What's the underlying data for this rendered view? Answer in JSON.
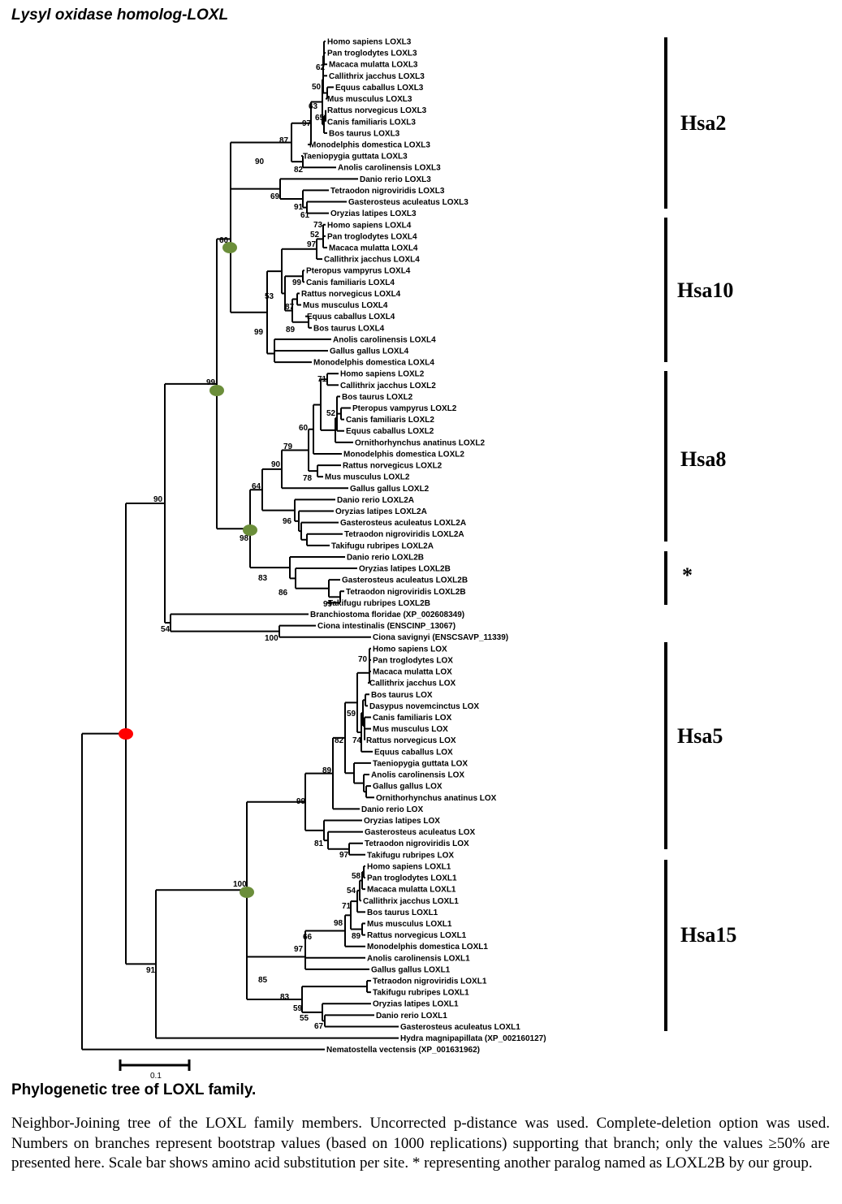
{
  "title": "Lysyl oxidase homolog-LOXL",
  "scale_bar_label": "0.1",
  "caption_title": "Phylogenetic tree of LOXL family.",
  "caption_text": "Neighbor-Joining tree of the LOXL family members. Uncorrected p-distance was used. Complete-deletion option was used. Numbers on branches represent bootstrap values (based on 1000 replications) supporting that branch; only the values ≥50% are presented here. Scale bar shows amino acid substitution per site. * representing another paralog named as LOXL2B by our group.",
  "groups": [
    {
      "label": "Hsa2"
    },
    {
      "label": "Hsa10"
    },
    {
      "label": "Hsa8"
    },
    {
      "label": "*"
    },
    {
      "label": "Hsa5"
    },
    {
      "label": "Hsa15"
    }
  ],
  "taxa": [
    "Homo sapiens LOXL3",
    "Pan troglodytes LOXL3",
    "Macaca mulatta LOXL3",
    "Callithrix jacchus LOXL3",
    "Equus caballus LOXL3",
    "Mus musculus LOXL3",
    "Rattus norvegicus LOXL3",
    "Canis familiaris LOXL3",
    "Bos taurus LOXL3",
    "Monodelphis domestica LOXL3",
    "Taeniopygia guttata LOXL3",
    "Anolis carolinensis LOXL3",
    "Danio rerio LOXL3",
    "Tetraodon nigroviridis LOXL3",
    "Gasterosteus aculeatus LOXL3",
    "Oryzias latipes LOXL3",
    "Homo sapiens LOXL4",
    "Pan troglodytes LOXL4",
    "Macaca mulatta LOXL4",
    "Callithrix jacchus LOXL4",
    "Pteropus vampyrus LOXL4",
    "Canis familiaris LOXL4",
    "Rattus norvegicus LOXL4",
    "Mus musculus LOXL4",
    "Equus caballus LOXL4",
    "Bos taurus LOXL4",
    "Anolis carolinensis LOXL4",
    "Gallus gallus LOXL4",
    "Monodelphis domestica LOXL4",
    "Homo sapiens LOXL2",
    "Callithrix jacchus LOXL2",
    "Bos taurus LOXL2",
    "Pteropus vampyrus LOXL2",
    "Canis familiaris LOXL2",
    "Equus caballus LOXL2",
    "Ornithorhynchus anatinus LOXL2",
    "Monodelphis domestica LOXL2",
    "Rattus norvegicus LOXL2",
    "Mus musculus LOXL2",
    "Gallus gallus LOXL2",
    "Danio rerio LOXL2A",
    "Oryzias latipes LOXL2A",
    "Gasterosteus aculeatus LOXL2A",
    "Tetraodon nigroviridis LOXL2A",
    "Takifugu rubripes LOXL2A",
    "Danio rerio LOXL2B",
    "Oryzias latipes LOXL2B",
    "Gasterosteus aculeatus LOXL2B",
    "Tetraodon nigroviridis LOXL2B",
    "Takifugu rubripes LOXL2B",
    "Branchiostoma floridae (XP_002608349)",
    "Ciona intestinalis (ENSCINP_13067)",
    "Ciona savignyi (ENSCSAVP_11339)",
    "Homo sapiens LOX",
    "Pan troglodytes LOX",
    "Macaca mulatta LOX",
    "Callithrix jacchus LOX",
    "Bos taurus LOX",
    "Dasypus novemcinctus LOX",
    "Canis familiaris LOX",
    "Mus musculus LOX",
    "Rattus norvegicus LOX",
    "Equus caballus LOX",
    "Taeniopygia guttata LOX",
    "Anolis carolinensis LOX",
    "Gallus gallus LOX",
    "Ornithorhynchus anatinus LOX",
    "Danio rerio LOX",
    "Oryzias latipes LOX",
    "Gasterosteus aculeatus LOX",
    "Tetraodon nigroviridis LOX",
    "Takifugu rubripes LOX",
    "Homo sapiens LOXL1",
    "Pan troglodytes LOXL1",
    "Macaca mulatta LOXL1",
    "Callithrix jacchus LOXL1",
    "Bos taurus LOXL1",
    "Mus musculus LOXL1",
    "Rattus norvegicus LOXL1",
    "Monodelphis domestica LOXL1",
    "Anolis carolinensis LOXL1",
    "Gallus gallus LOXL1",
    "Tetraodon nigroviridis LOXL1",
    "Takifugu rubripes LOXL1",
    "Oryzias latipes LOXL1",
    "Danio rerio LOXL1",
    "Gasterosteus aculeatus LOXL1",
    "Hydra magnipapillata (XP_002160127)",
    "Nematostella vectensis (XP_001631962)"
  ],
  "bootstrap_values": [
    "62",
    "50",
    "63",
    "65",
    "97",
    "87",
    "82",
    "90",
    "69",
    "91",
    "61",
    "73",
    "52",
    "97",
    "99",
    "87",
    "53",
    "89",
    "99",
    "60",
    "71",
    "52",
    "60",
    "79",
    "90",
    "78",
    "64",
    "96",
    "98",
    "83",
    "86",
    "99",
    "99",
    "90",
    "54",
    "100",
    "70",
    "59",
    "74",
    "82",
    "89",
    "99",
    "81",
    "97",
    "58",
    "54",
    "71",
    "98",
    "89",
    "66",
    "97",
    "83",
    "59",
    "55",
    "67",
    "85",
    "100",
    "91"
  ],
  "colors": {
    "node_marker": "#6b8e3a",
    "root_marker": "#ff0000",
    "line": "#000000"
  }
}
